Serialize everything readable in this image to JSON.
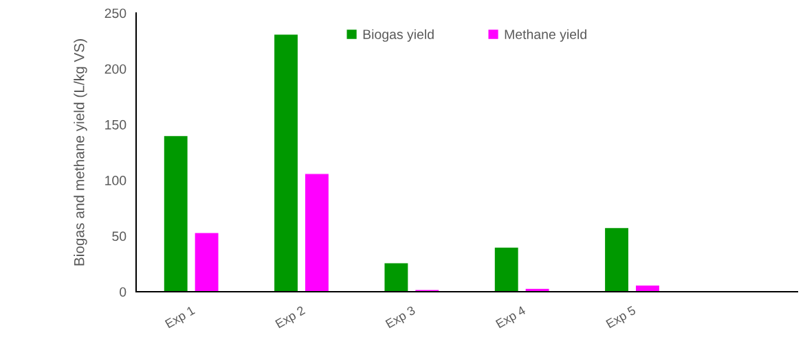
{
  "chart_data": {
    "type": "bar",
    "ylabel": "Biogas and methane yield (L/kg VS)",
    "categories": [
      "Exp 1",
      "Exp 2",
      "Exp 3",
      "Exp 4",
      "Exp 5",
      null
    ],
    "series": [
      {
        "name": "Biogas yield",
        "color": "#009900",
        "values": [
          140,
          231,
          26,
          40,
          57.5,
          null
        ]
      },
      {
        "name": "Methane yield",
        "color": "#ff00ff",
        "values": [
          53,
          106,
          2,
          3,
          6,
          null
        ]
      }
    ],
    "ylim": [
      0,
      250
    ],
    "yticks": [
      0,
      50,
      100,
      150,
      200,
      250
    ],
    "grid": false,
    "legend": "top"
  }
}
